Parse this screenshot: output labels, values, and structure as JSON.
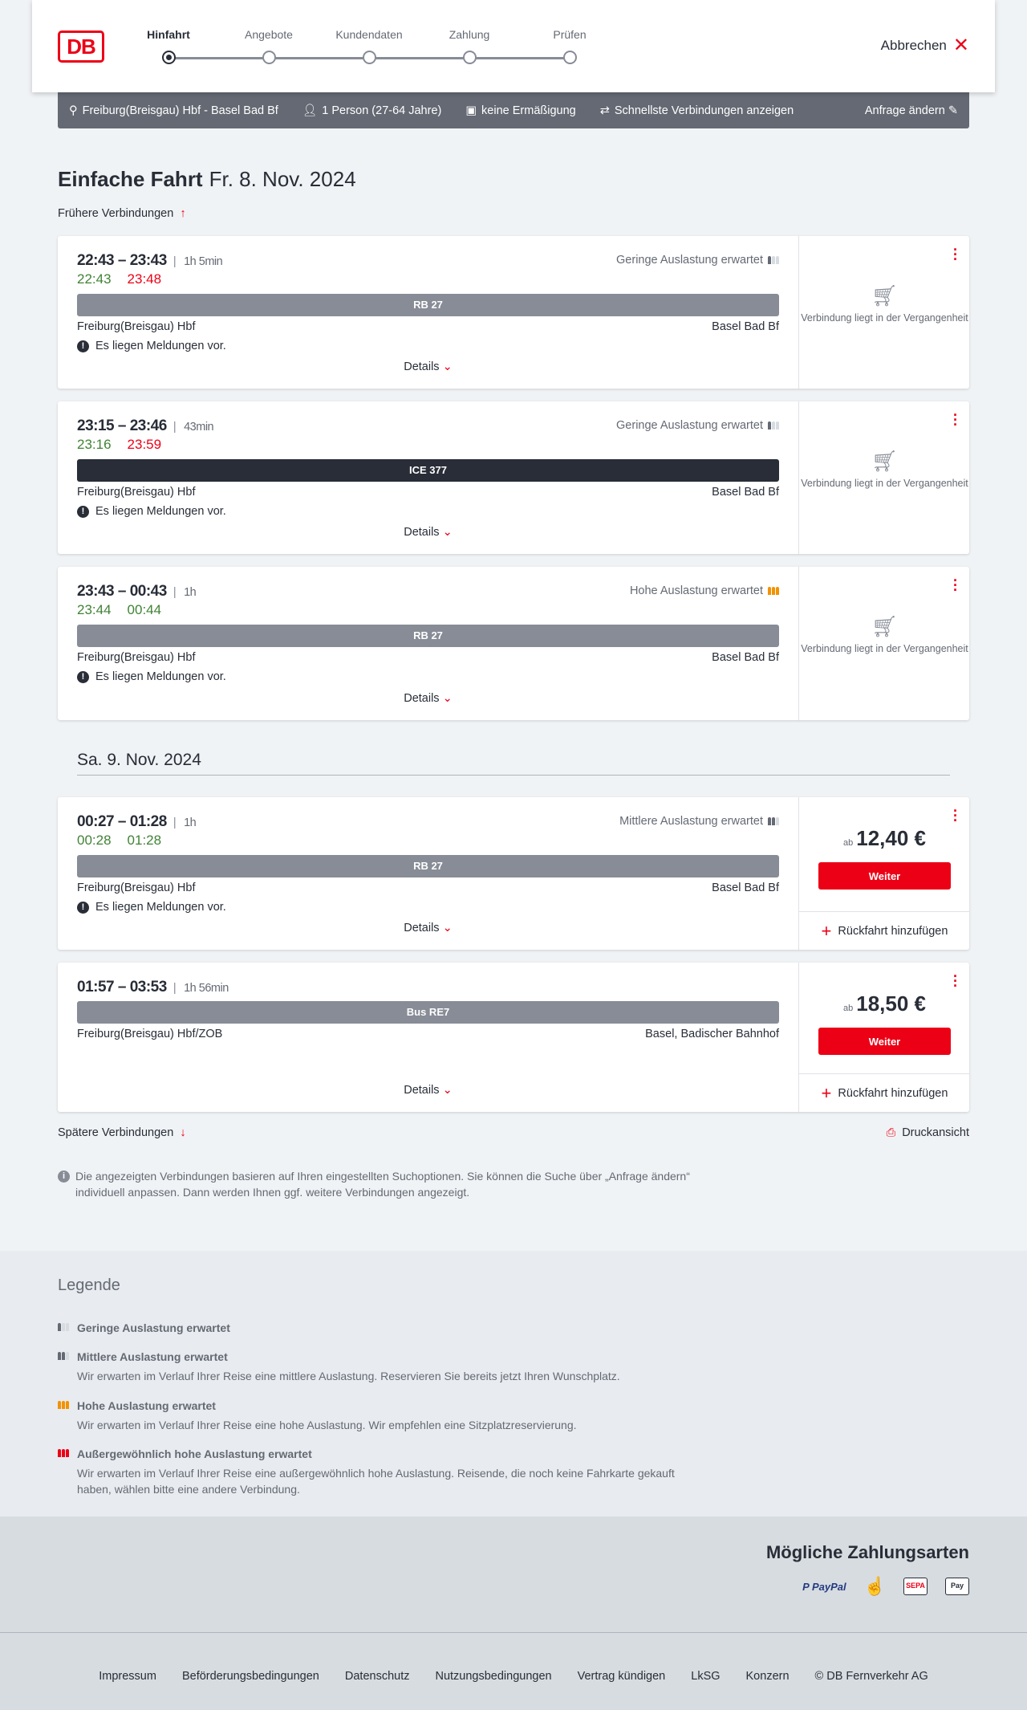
{
  "header": {
    "logo": "DB",
    "steps": [
      "Hinfahrt",
      "Angebote",
      "Kundendaten",
      "Zahlung",
      "Prüfen"
    ],
    "active_step": 0,
    "cancel_label": "Abbrechen"
  },
  "query": {
    "route": "Freiburg(Breisgau) Hbf - Basel Bad Bf",
    "passengers": "1 Person (27-64 Jahre)",
    "discount": "keine Ermäßigung",
    "fastest": "Schnellste Verbindungen anzeigen",
    "edit": "Anfrage ändern"
  },
  "page": {
    "title": "Einfache Fahrt",
    "date": "Fr. 8. Nov. 2024",
    "earlier": "Frühere Verbindungen",
    "later": "Spätere Verbindungen",
    "print": "Druckansicht",
    "second_day": "Sa. 9. Nov. 2024",
    "info": "Die angezeigten Verbindungen basieren auf Ihren eingestellten Suchoptionen. Sie können die Suche über „Anfrage ändern“ individuell anpassen. Dann werden Ihnen ggf. weitere Verbindungen angezeigt."
  },
  "colors": {
    "brand": "#ec0016",
    "on_time": "#408335",
    "delayed": "#ec0016",
    "high_occupancy": "#f39200"
  },
  "connections": [
    {
      "times": "22:43 – 23:43",
      "duration": "1h 5min",
      "rt_dep": "22:43",
      "rt_arr": "23:48",
      "rt_dep_status": "on_time",
      "rt_arr_status": "delayed",
      "occupancy": "Geringe Auslastung erwartet",
      "occ_level": 1,
      "train": "RB 27",
      "train_style": "regional",
      "from": "Freiburg(Breisgau) Hbf",
      "to": "Basel Bad Bf",
      "message": "Es liegen Meldungen vor.",
      "details": "Details",
      "past": "Verbindung liegt in der Vergangenheit"
    },
    {
      "times": "23:15 – 23:46",
      "duration": "43min",
      "rt_dep": "23:16",
      "rt_arr": "23:59",
      "rt_dep_status": "on_time",
      "rt_arr_status": "delayed",
      "occupancy": "Geringe Auslastung erwartet",
      "occ_level": 1,
      "train": "ICE 377",
      "train_style": "long_distance",
      "from": "Freiburg(Breisgau) Hbf",
      "to": "Basel Bad Bf",
      "message": "Es liegen Meldungen vor.",
      "details": "Details",
      "past": "Verbindung liegt in der Vergangenheit"
    },
    {
      "times": "23:43 – 00:43",
      "duration": "1h",
      "rt_dep": "23:44",
      "rt_arr": "00:44",
      "rt_dep_status": "on_time",
      "rt_arr_status": "on_time",
      "occupancy": "Hohe Auslastung erwartet",
      "occ_level": 3,
      "train": "RB 27",
      "train_style": "regional",
      "from": "Freiburg(Breisgau) Hbf",
      "to": "Basel Bad Bf",
      "message": "Es liegen Meldungen vor.",
      "details": "Details",
      "past": "Verbindung liegt in der Vergangenheit"
    },
    {
      "times": "00:27 – 01:28",
      "duration": "1h",
      "rt_dep": "00:28",
      "rt_arr": "01:28",
      "rt_dep_status": "on_time",
      "rt_arr_status": "on_time",
      "occupancy": "Mittlere Auslastung erwartet",
      "occ_level": 2,
      "train": "RB 27",
      "train_style": "regional",
      "from": "Freiburg(Breisgau) Hbf",
      "to": "Basel Bad Bf",
      "message": "Es liegen Meldungen vor.",
      "details": "Details",
      "price_prefix": "ab",
      "price": "12,40 €",
      "continue": "Weiter",
      "add_return": "Rückfahrt hinzufügen"
    },
    {
      "times": "01:57 – 03:53",
      "duration": "1h 56min",
      "train": "Bus RE7",
      "train_style": "regional",
      "from": "Freiburg(Breisgau) Hbf/ZOB",
      "to": "Basel, Badischer Bahnhof",
      "details": "Details",
      "price_prefix": "ab",
      "price": "18,50 €",
      "continue": "Weiter",
      "add_return": "Rückfahrt hinzufügen"
    }
  ],
  "legend": {
    "title": "Legende",
    "items": [
      {
        "title": "Geringe Auslastung erwartet",
        "level": 1
      },
      {
        "title": "Mittlere Auslastung erwartet",
        "level": 2,
        "text": "Wir erwarten im Verlauf Ihrer Reise eine mittlere Auslastung. Reservieren Sie bereits jetzt Ihren Wunschplatz."
      },
      {
        "title": "Hohe Auslastung erwartet",
        "level": 3,
        "text": "Wir erwarten im Verlauf Ihrer Reise eine hohe Auslastung. Wir empfehlen eine Sitzplatzreservierung."
      },
      {
        "title": "Außergewöhnlich hohe Auslastung erwartet",
        "level": 4,
        "text": "Wir erwarten im Verlauf Ihrer Reise eine außergewöhnlich hohe Auslastung. Reisende, die noch keine Fahrkarte gekauft haben, wählen bitte eine andere Verbindung."
      }
    ]
  },
  "payment": {
    "title": "Mögliche Zahlungsarten",
    "methods": [
      "PayPal",
      "Kreditkarte",
      "SEPA",
      "Apple Pay"
    ]
  },
  "footer": {
    "links": [
      "Impressum",
      "Beförderungsbedingungen",
      "Datenschutz",
      "Nutzungsbedingungen",
      "Vertrag kündigen",
      "LkSG",
      "Konzern",
      "© DB Fernverkehr AG"
    ]
  }
}
